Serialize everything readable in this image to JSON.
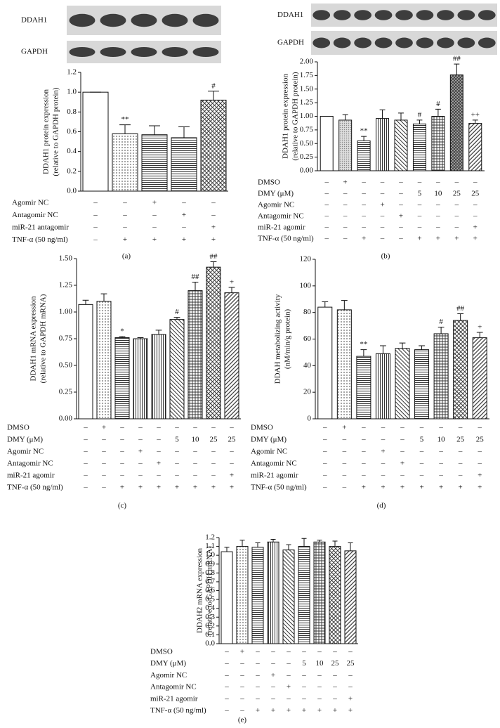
{
  "chart_data": [
    {
      "type": "bar",
      "panel_label": "(a)",
      "blot_labels": [
        "DDAH1",
        "GAPDH"
      ],
      "y_label": [
        "DDAH1 protein expression",
        "(relative to GAPDH protein)"
      ],
      "ylim": [
        0,
        1.2
      ],
      "yticks": [
        {
          "value": 0,
          "label": "0.0"
        },
        {
          "value": 0.2,
          "label": "0.2"
        },
        {
          "value": 0.4,
          "label": "0.4"
        },
        {
          "value": 0.6,
          "label": "0.6"
        },
        {
          "value": 0.8,
          "label": "0.8"
        },
        {
          "value": 1,
          "label": "1.0"
        },
        {
          "value": 1.2,
          "label": "1.2"
        }
      ],
      "values": [
        1.0,
        0.58,
        0.57,
        0.54,
        0.92
      ],
      "errors": [
        0,
        0.09,
        0.09,
        0.11,
        0.09
      ],
      "annotations": [
        null,
        "**",
        null,
        null,
        "#"
      ],
      "bar_patterns": [
        "white",
        "dots",
        "hlines",
        "hlines",
        "cross"
      ],
      "conditions": [
        {
          "label": "Agomir NC",
          "marks": [
            "–",
            "–",
            "+",
            "–",
            "–"
          ]
        },
        {
          "label": "Antagomir NC",
          "marks": [
            "–",
            "–",
            "–",
            "+",
            "–"
          ]
        },
        {
          "label": "miR-21 antagomir",
          "marks": [
            "–",
            "–",
            "–",
            "–",
            "+"
          ]
        },
        {
          "label": "TNF-α (50 ng/ml)",
          "marks": [
            "–",
            "+",
            "+",
            "+",
            "+"
          ]
        }
      ]
    },
    {
      "type": "bar",
      "panel_label": "(b)",
      "blot_labels": [
        "DDAH1",
        "GAPDH"
      ],
      "y_label": [
        "DDAH1 protein expression",
        "(relative to GAPDH protein)"
      ],
      "ylim": [
        0,
        2
      ],
      "yticks": [
        {
          "value": 0,
          "label": "0.00"
        },
        {
          "value": 0.25,
          "label": "0.25"
        },
        {
          "value": 0.5,
          "label": "0.50"
        },
        {
          "value": 0.75,
          "label": "0.75"
        },
        {
          "value": 1,
          "label": "1.00"
        },
        {
          "value": 1.25,
          "label": "1.25"
        },
        {
          "value": 1.5,
          "label": "1.50"
        },
        {
          "value": 1.75,
          "label": "1.75"
        },
        {
          "value": 2,
          "label": "2.00"
        }
      ],
      "values": [
        1.0,
        0.93,
        0.55,
        0.96,
        0.93,
        0.86,
        1.0,
        1.76,
        0.87
      ],
      "errors": [
        0,
        0.1,
        0.08,
        0.16,
        0.13,
        0.07,
        0.13,
        0.2,
        0.06
      ],
      "annotations": [
        null,
        null,
        "**",
        null,
        null,
        "#",
        "#",
        "##",
        "++"
      ],
      "bar_patterns": [
        "white",
        "gray",
        "hlines",
        "vlines",
        "diag",
        "hlines",
        "grid",
        "dense",
        "back"
      ],
      "conditions": [
        {
          "label": "DMSO",
          "marks": [
            "–",
            "+",
            "–",
            "–",
            "–",
            "–",
            "–",
            "–",
            "–"
          ]
        },
        {
          "label": "DMY (μM)",
          "marks": [
            "–",
            "–",
            "–",
            "–",
            "–",
            "5",
            "10",
            "25",
            "25"
          ]
        },
        {
          "label": "Agomir NC",
          "marks": [
            "–",
            "–",
            "–",
            "+",
            "–",
            "–",
            "–",
            "–",
            "–"
          ]
        },
        {
          "label": "Antagomir NC",
          "marks": [
            "–",
            "–",
            "–",
            "–",
            "+",
            "–",
            "–",
            "–",
            "–"
          ]
        },
        {
          "label": "miR-21 agomir",
          "marks": [
            "–",
            "–",
            "–",
            "–",
            "–",
            "–",
            "–",
            "–",
            "+"
          ]
        },
        {
          "label": "TNF-α (50 ng/ml)",
          "marks": [
            "–",
            "–",
            "+",
            "–",
            "–",
            "+",
            "+",
            "+",
            "+"
          ]
        }
      ]
    },
    {
      "type": "bar",
      "panel_label": "(c)",
      "y_label": [
        "DDAH1 mRNA expression",
        "(relative to GAPDH mRNA)"
      ],
      "ylim": [
        0,
        1.5
      ],
      "yticks": [
        {
          "value": 0,
          "label": "0.00"
        },
        {
          "value": 0.25,
          "label": "0.25"
        },
        {
          "value": 0.5,
          "label": "0.50"
        },
        {
          "value": 0.75,
          "label": "0.75"
        },
        {
          "value": 1,
          "label": "1.00"
        },
        {
          "value": 1.25,
          "label": "1.25"
        },
        {
          "value": 1.5,
          "label": "1.50"
        }
      ],
      "values": [
        1.07,
        1.1,
        0.76,
        0.75,
        0.79,
        0.93,
        1.2,
        1.42,
        1.18
      ],
      "errors": [
        0.04,
        0.07,
        0.01,
        0.01,
        0.04,
        0.02,
        0.08,
        0.05,
        0.05
      ],
      "annotations": [
        null,
        null,
        "*",
        null,
        null,
        "#",
        "##",
        "##",
        "+"
      ],
      "bar_patterns": [
        "white",
        "dots",
        "hlines",
        "vlines",
        "vlines",
        "diag",
        "grid",
        "cross",
        "back"
      ],
      "conditions": [
        {
          "label": "DMSO",
          "marks": [
            "–",
            "+",
            "–",
            "–",
            "–",
            "–",
            "–",
            "–",
            "–"
          ]
        },
        {
          "label": "DMY (μM)",
          "marks": [
            "–",
            "–",
            "–",
            "–",
            "–",
            "5",
            "10",
            "25",
            "25"
          ]
        },
        {
          "label": "Agomir NC",
          "marks": [
            "–",
            "–",
            "–",
            "+",
            "–",
            "–",
            "–",
            "–",
            "–"
          ]
        },
        {
          "label": "Antagomir NC",
          "marks": [
            "–",
            "–",
            "–",
            "–",
            "+",
            "–",
            "–",
            "–",
            "–"
          ]
        },
        {
          "label": "miR-21 agomir",
          "marks": [
            "–",
            "–",
            "–",
            "–",
            "–",
            "–",
            "–",
            "–",
            "+"
          ]
        },
        {
          "label": "TNF-α (50 ng/ml)",
          "marks": [
            "–",
            "–",
            "+",
            "+",
            "+",
            "+",
            "+",
            "+",
            "+"
          ]
        }
      ]
    },
    {
      "type": "bar",
      "panel_label": "(d)",
      "y_label": [
        "DDAH metabolizing activity",
        "(nM/min/g protein)"
      ],
      "ylim": [
        0,
        120
      ],
      "yticks": [
        0,
        20,
        40,
        60,
        80,
        100,
        120
      ],
      "values": [
        84,
        82,
        47,
        49,
        53,
        52,
        64,
        74,
        61
      ],
      "errors": [
        4,
        7,
        5,
        6,
        4,
        3,
        5,
        5,
        4
      ],
      "annotations": [
        null,
        null,
        "**",
        null,
        null,
        null,
        "#",
        "##",
        "+"
      ],
      "bar_patterns": [
        "white",
        "dots",
        "hlines",
        "vlines",
        "diag",
        "hlines",
        "grid",
        "cross",
        "back"
      ],
      "conditions": [
        {
          "label": "DMSO",
          "marks": [
            "–",
            "+",
            "–",
            "–",
            "–",
            "–",
            "–",
            "–",
            "–"
          ]
        },
        {
          "label": "DMY (μM)",
          "marks": [
            "–",
            "–",
            "–",
            "–",
            "–",
            "5",
            "10",
            "25",
            "25"
          ]
        },
        {
          "label": "Agomir NC",
          "marks": [
            "–",
            "–",
            "–",
            "+",
            "–",
            "–",
            "–",
            "–",
            "–"
          ]
        },
        {
          "label": "Antagomir NC",
          "marks": [
            "–",
            "–",
            "–",
            "–",
            "+",
            "–",
            "–",
            "–",
            "–"
          ]
        },
        {
          "label": "miR-21 agomir",
          "marks": [
            "–",
            "–",
            "–",
            "–",
            "–",
            "–",
            "–",
            "–",
            "+"
          ]
        },
        {
          "label": "TNF-α (50 ng/ml)",
          "marks": [
            "–",
            "–",
            "+",
            "+",
            "+",
            "+",
            "+",
            "+",
            "+"
          ]
        }
      ]
    },
    {
      "type": "bar",
      "panel_label": "(e)",
      "y_label": [
        "DDAH2 mRNA expression",
        "(relative to GAPDH mRNA)"
      ],
      "ylim": [
        0,
        1.2
      ],
      "yticks": [
        {
          "value": 0,
          "label": "0.0"
        },
        {
          "value": 0.1,
          "label": "0.1"
        },
        {
          "value": 0.2,
          "label": "0.2"
        },
        {
          "value": 0.3,
          "label": "0.3"
        },
        {
          "value": 0.4,
          "label": "0.4"
        },
        {
          "value": 0.5,
          "label": "0.5"
        },
        {
          "value": 0.6,
          "label": "0.6"
        },
        {
          "value": 0.7,
          "label": "0.7"
        },
        {
          "value": 0.8,
          "label": "0.8"
        },
        {
          "value": 0.9,
          "label": "0.9"
        },
        {
          "value": 1,
          "label": "1.0"
        },
        {
          "value": 1.1,
          "label": "1.1"
        },
        {
          "value": 1.2,
          "label": "1.2"
        }
      ],
      "values": [
        1.04,
        1.1,
        1.09,
        1.15,
        1.06,
        1.1,
        1.15,
        1.1,
        1.05
      ],
      "errors": [
        0.05,
        0.07,
        0.05,
        0.03,
        0.06,
        0.09,
        0.02,
        0.06,
        0.09
      ],
      "annotations": [
        null,
        null,
        null,
        null,
        null,
        null,
        null,
        null,
        null
      ],
      "bar_patterns": [
        "white",
        "dots",
        "hlines",
        "vlines",
        "diag",
        "hlines",
        "grid",
        "cross",
        "back"
      ],
      "conditions": [
        {
          "label": "DMSO",
          "marks": [
            "–",
            "+",
            "–",
            "–",
            "–",
            "–",
            "–",
            "–",
            "–"
          ]
        },
        {
          "label": "DMY (μM)",
          "marks": [
            "–",
            "–",
            "–",
            "–",
            "–",
            "5",
            "10",
            "25",
            "25"
          ]
        },
        {
          "label": "Agomir NC",
          "marks": [
            "–",
            "–",
            "–",
            "+",
            "–",
            "–",
            "–",
            "–",
            "–"
          ]
        },
        {
          "label": "Antagomir NC",
          "marks": [
            "–",
            "–",
            "–",
            "–",
            "+",
            "–",
            "–",
            "–",
            "–"
          ]
        },
        {
          "label": "miR-21 agomir",
          "marks": [
            "–",
            "–",
            "–",
            "–",
            "–",
            "–",
            "–",
            "–",
            "+"
          ]
        },
        {
          "label": "TNF-α (50 ng/ml)",
          "marks": [
            "–",
            "–",
            "+",
            "+",
            "+",
            "+",
            "+",
            "+",
            "+"
          ]
        }
      ]
    }
  ]
}
